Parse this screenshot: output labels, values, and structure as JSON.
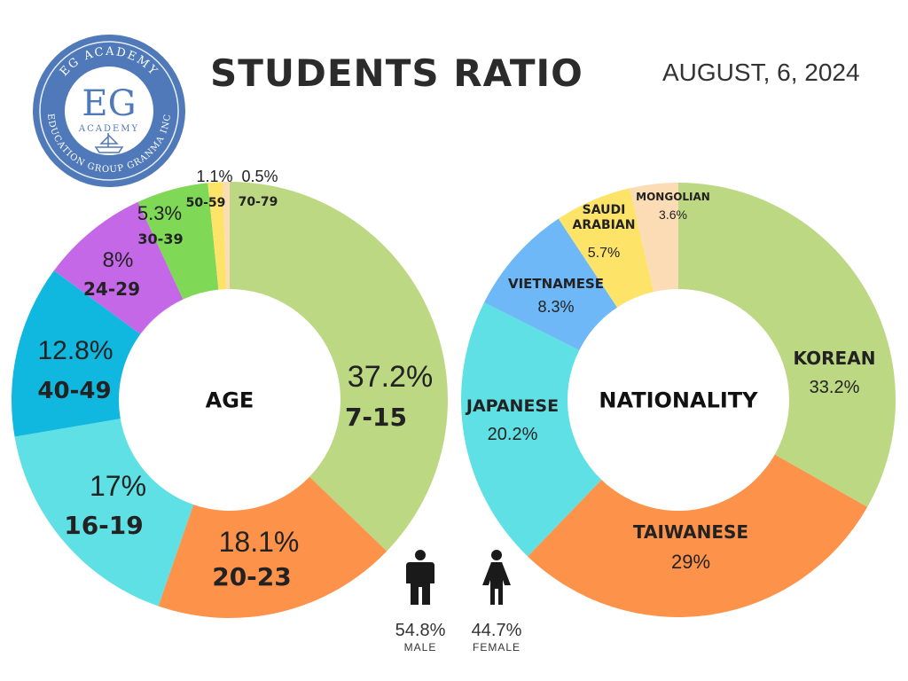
{
  "header": {
    "title": "STUDENTS RATIO",
    "date": "AUGUST, 6, 2024"
  },
  "logo": {
    "top_text": "EG ACADEMY",
    "letters": "EG",
    "sub_text": "ACADEMY",
    "bottom_text": "EDUCATION GROUP GRANMA INC"
  },
  "chart_data": [
    {
      "type": "pie",
      "center_label": "AGE",
      "slices": [
        {
          "label": "7-15",
          "value": 37.2,
          "display": "37.2%",
          "color": "#bdd882"
        },
        {
          "label": "20-23",
          "value": 18.1,
          "display": "18.1%",
          "color": "#fd924a"
        },
        {
          "label": "16-19",
          "value": 17,
          "display": "17%",
          "color": "#5fe0e5"
        },
        {
          "label": "40-49",
          "value": 12.8,
          "display": "12.8%",
          "color": "#10b8e0"
        },
        {
          "label": "24-29",
          "value": 8,
          "display": "8%",
          "color": "#c468e8"
        },
        {
          "label": "30-39",
          "value": 5.3,
          "display": "5.3%",
          "color": "#7fd856"
        },
        {
          "label": "50-59",
          "value": 1.1,
          "display": "1.1%",
          "color": "#fde367"
        },
        {
          "label": "70-79",
          "value": 0.5,
          "display": "0.5%",
          "color": "#fbdcb4"
        }
      ]
    },
    {
      "type": "pie",
      "center_label": "NATIONALITY",
      "slices": [
        {
          "label": "KOREAN",
          "value": 33.2,
          "display": "33.2%",
          "color": "#bdd882"
        },
        {
          "label": "TAIWANESE",
          "value": 29,
          "display": "29%",
          "color": "#fd924a"
        },
        {
          "label": "JAPANESE",
          "value": 20.2,
          "display": "20.2%",
          "color": "#5fe0e5"
        },
        {
          "label": "VIETNAMESE",
          "value": 8.3,
          "display": "8.3%",
          "color": "#6eb8f8"
        },
        {
          "label": "SAUDI\nARABIAN",
          "value": 5.7,
          "display": "5.7%",
          "color": "#fde367"
        },
        {
          "label": "MONGOLIAN",
          "value": 3.6,
          "display": "3.6%",
          "color": "#fbdcb4"
        }
      ]
    }
  ],
  "gender": {
    "male": {
      "percent": "54.8%",
      "label": "MALE"
    },
    "female": {
      "percent": "44.7%",
      "label": "FEMALE"
    }
  }
}
